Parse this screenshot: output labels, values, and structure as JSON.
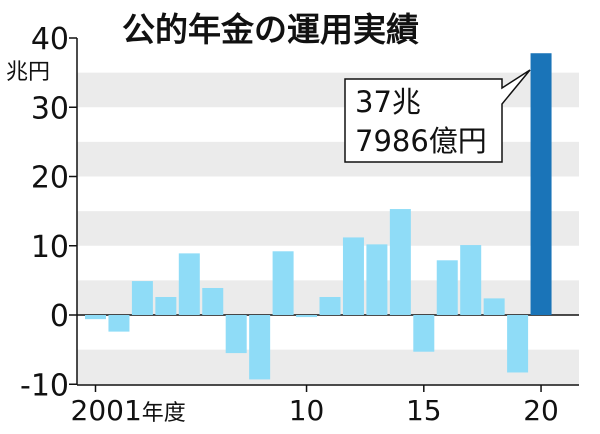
{
  "chart_data": {
    "type": "bar",
    "title": "公的年金の運用実績",
    "unit_label": "兆円",
    "x_tick_labels": [
      {
        "year": 2001,
        "text": "2001",
        "suffix": "年度"
      },
      {
        "year": 2010,
        "text": "10"
      },
      {
        "year": 2015,
        "text": "15"
      },
      {
        "year": 2020,
        "text": "20"
      }
    ],
    "y_ticks": [
      40,
      30,
      20,
      10,
      0,
      -10
    ],
    "y_tick_labels": [
      "40",
      "30",
      "20",
      "10",
      "0",
      "-10"
    ],
    "ylim": [
      -10,
      40
    ],
    "grid": "horizontal bands",
    "categories": [
      2001,
      2002,
      2003,
      2004,
      2005,
      2006,
      2007,
      2008,
      2009,
      2010,
      2011,
      2012,
      2013,
      2014,
      2015,
      2016,
      2017,
      2018,
      2019,
      2020
    ],
    "values": [
      -0.6,
      -2.4,
      4.9,
      2.6,
      8.9,
      3.9,
      -5.5,
      -9.3,
      9.2,
      -0.3,
      2.6,
      11.2,
      10.2,
      15.3,
      -5.3,
      7.9,
      10.1,
      2.4,
      -8.3,
      37.8
    ],
    "highlight": {
      "year": 2020,
      "label_line1": "37兆",
      "label_line2": "7986億円"
    },
    "colors": {
      "bar": "#8fdcf7",
      "highlight_bar": "#1a74b8",
      "band": "#ebebeb",
      "text": "#111111"
    }
  }
}
